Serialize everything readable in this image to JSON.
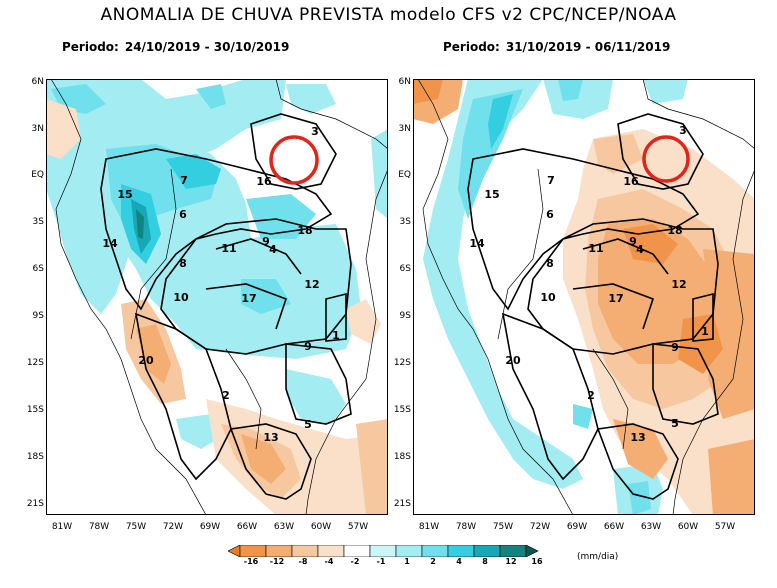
{
  "title": "ANOMALIA DE CHUVA PREVISTA modelo CFS v2 CPC/NCEP/NOAA",
  "panels": [
    {
      "period_label": "Periodo:",
      "period_value": "24/10/2019 - 30/10/2019"
    },
    {
      "period_label": "Periodo:",
      "period_value": "31/10/2019 - 06/11/2019"
    }
  ],
  "lat_labels": [
    "6N",
    "3N",
    "EQ",
    "3S",
    "6S",
    "9S",
    "12S",
    "15S",
    "18S",
    "21S"
  ],
  "lon_labels": [
    "81W",
    "78W",
    "75W",
    "72W",
    "69W",
    "66W",
    "63W",
    "60W",
    "57W"
  ],
  "basin_labels": [
    "1",
    "2",
    "3",
    "4",
    "5",
    "6",
    "7",
    "8",
    "9",
    "9",
    "10",
    "11",
    "12",
    "13",
    "14",
    "15",
    "16",
    "17",
    "18",
    "20"
  ],
  "legend": {
    "unit": "(mm/dia)",
    "ticks": [
      "-16",
      "-12",
      "-8",
      "-4",
      "-2",
      "-1",
      "1",
      "2",
      "4",
      "8",
      "12",
      "16"
    ],
    "colors": [
      "#ef7c1b",
      "#f1944a",
      "#f4ad73",
      "#f7c8a0",
      "#fae0c8",
      "#ffffff",
      "#ccf5f7",
      "#a2ecf2",
      "#6fe0ec",
      "#33cfe0",
      "#16a9b5",
      "#14827f",
      "#0d5a4d"
    ]
  },
  "colors": {
    "circle": "#e1251b"
  }
}
